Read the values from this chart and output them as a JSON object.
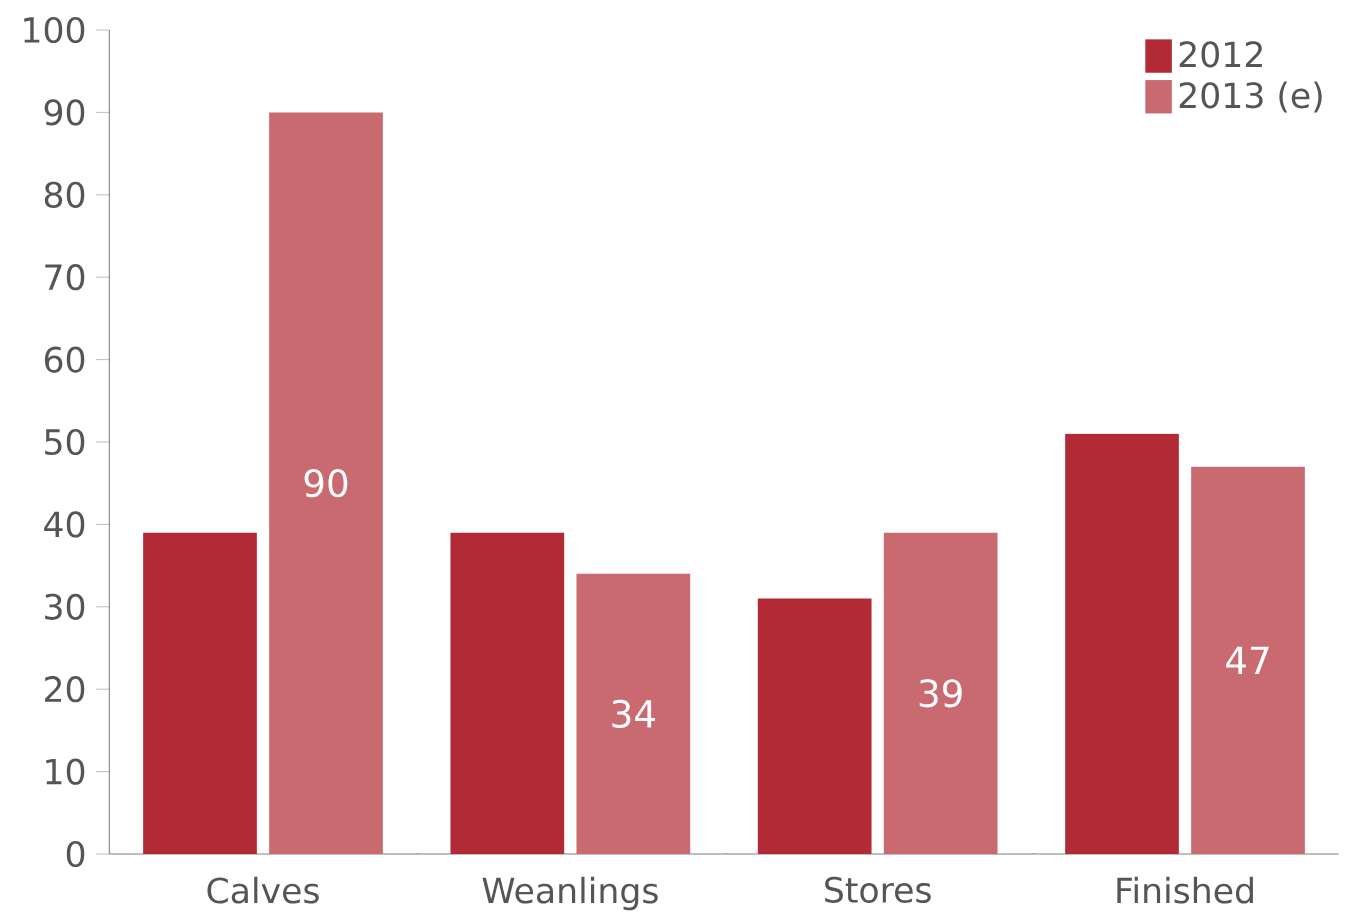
{
  "chart_data": {
    "type": "bar",
    "categories": [
      "Calves",
      "Weanlings",
      "Stores",
      "Finished"
    ],
    "series": [
      {
        "name": "2012",
        "color": "#b22a36",
        "values": [
          39,
          39,
          31,
          51
        ]
      },
      {
        "name": "2013 (e)",
        "color": "#c96a70",
        "values": [
          90,
          34,
          39,
          47
        ],
        "value_labels": [
          "90",
          "34",
          "39",
          "47"
        ]
      }
    ],
    "ylim": [
      0,
      100
    ],
    "yticks": [
      0,
      10,
      20,
      30,
      40,
      50,
      60,
      70,
      80,
      90,
      100
    ],
    "grid": false,
    "legend": "top right"
  }
}
